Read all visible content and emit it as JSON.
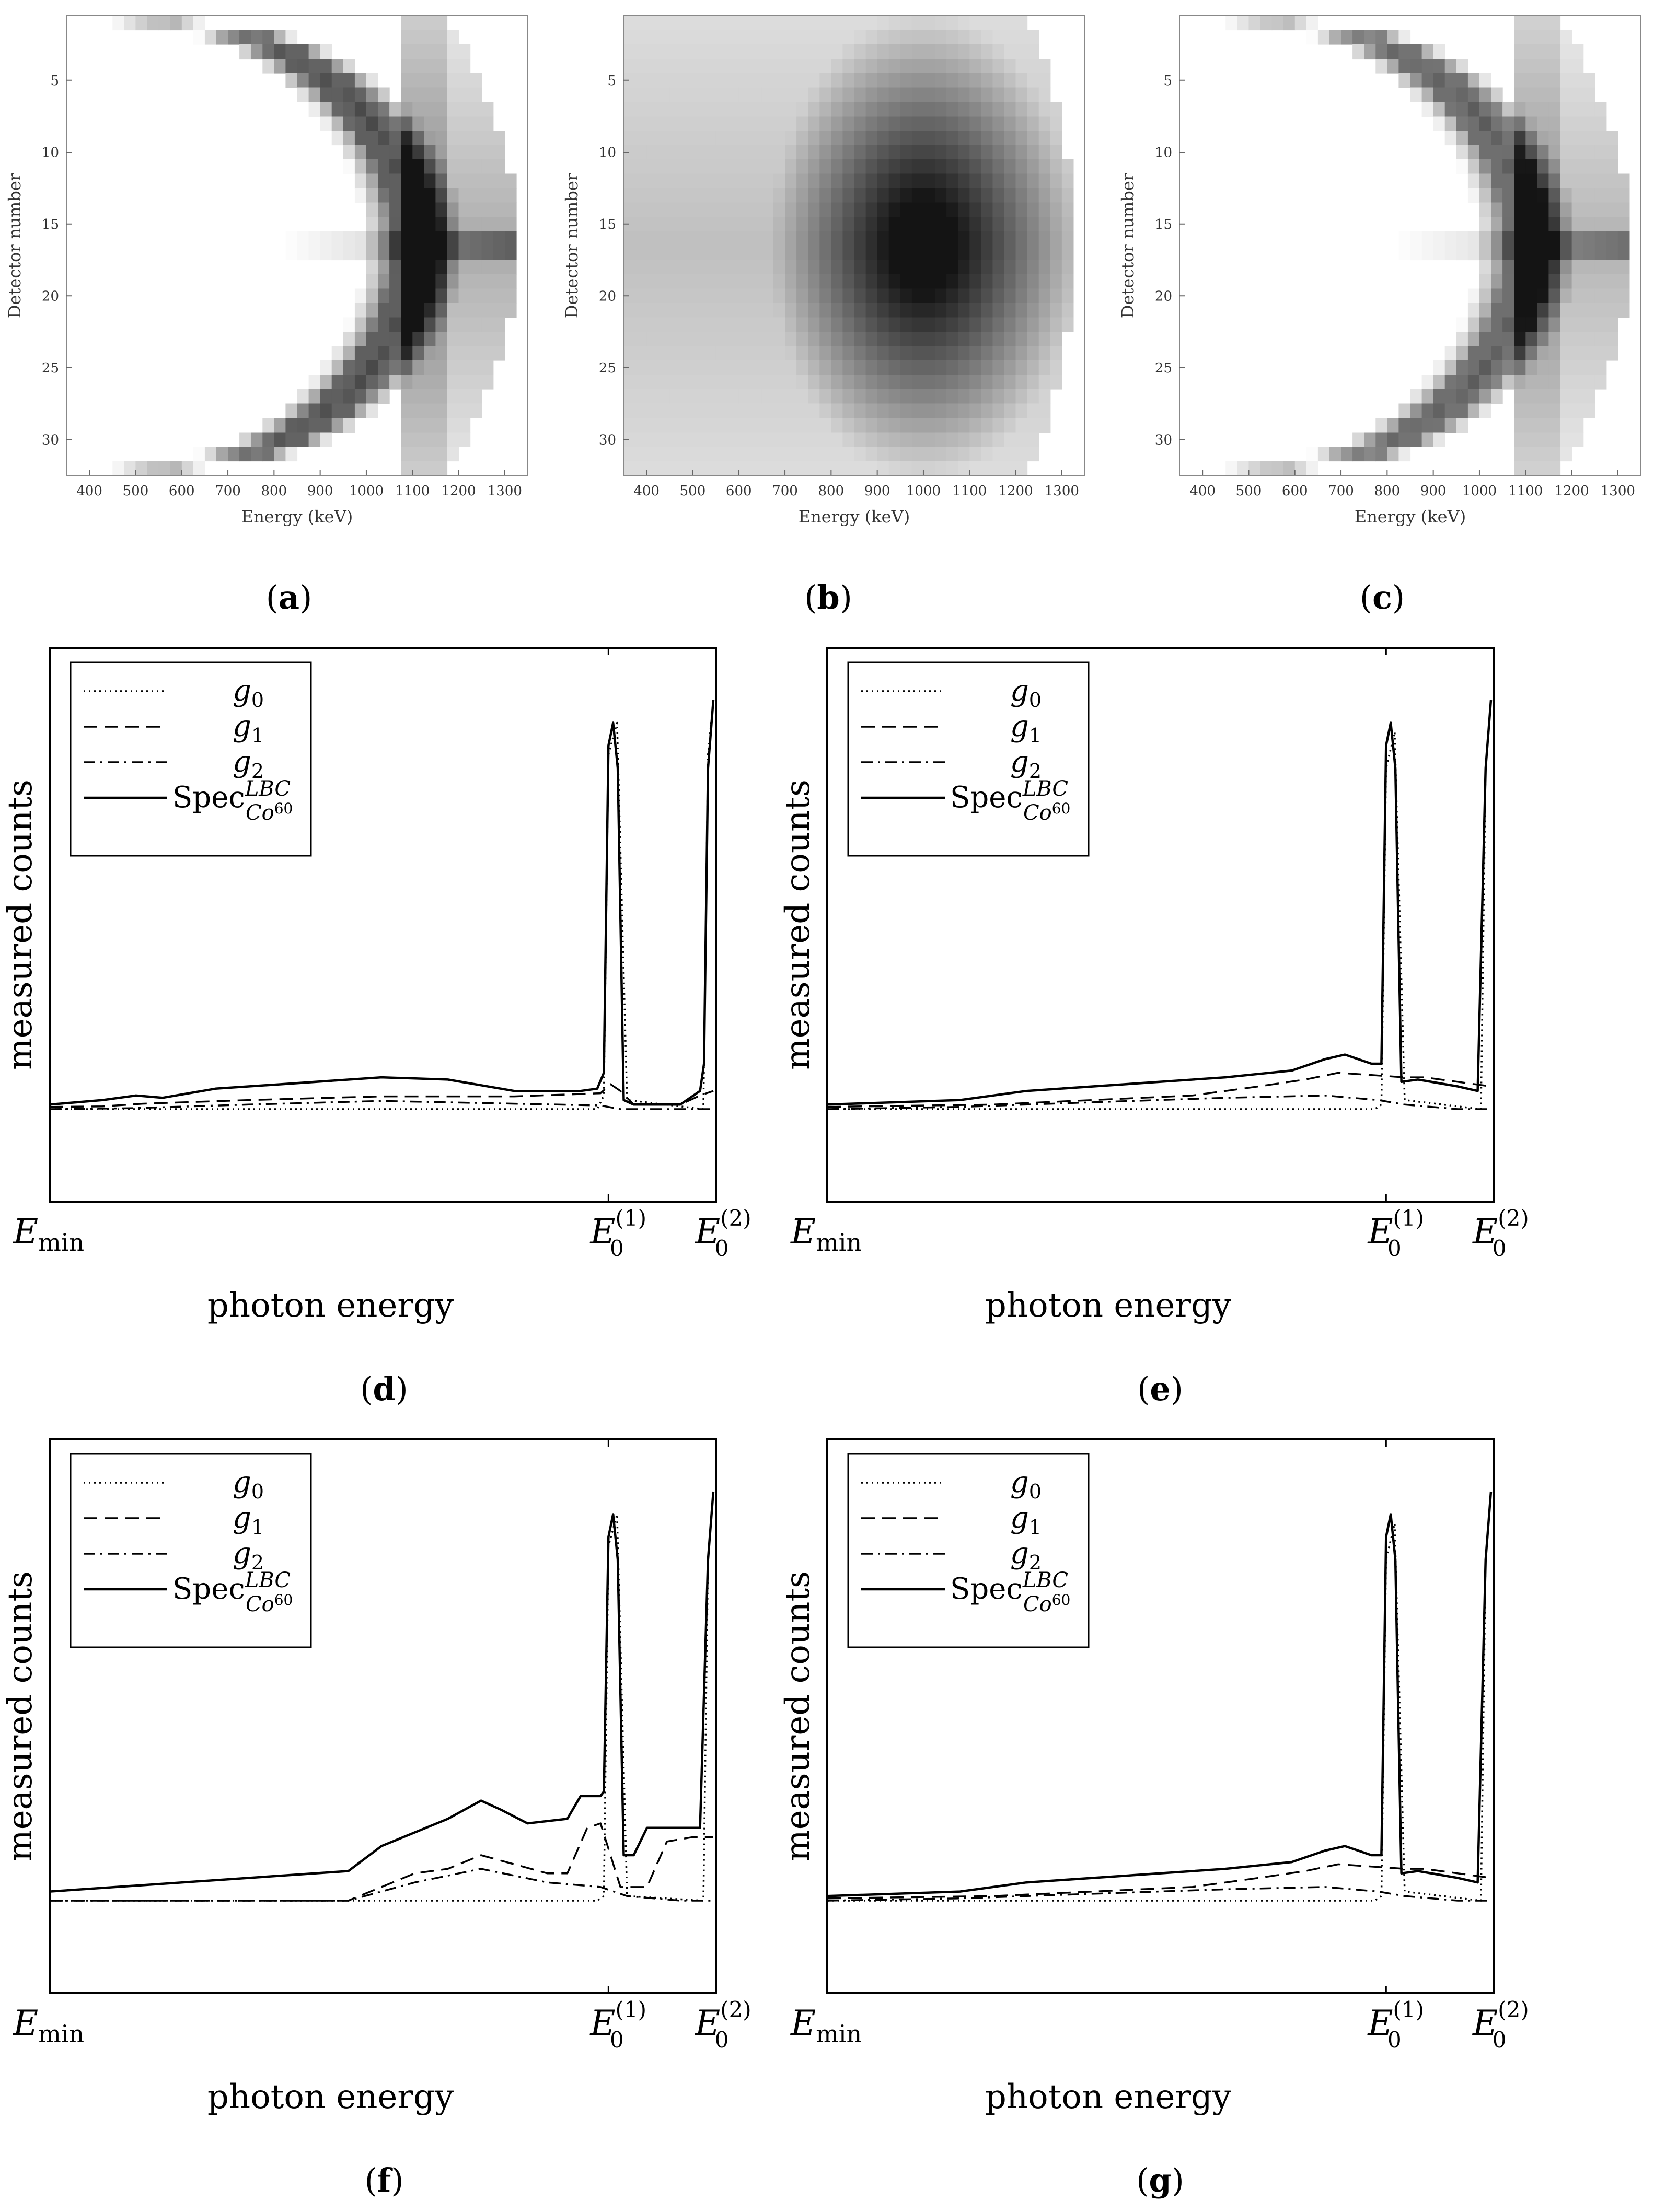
{
  "chart_data": [
    {
      "id": "a",
      "caption": "a",
      "type": "heatmap",
      "xlabel": "Energy (keV)",
      "ylabel": "Detector number",
      "xlim": [
        350,
        1350
      ],
      "ylim": [
        32,
        1
      ],
      "xticks": [
        400,
        500,
        600,
        700,
        800,
        900,
        1000,
        1100,
        1200,
        1300
      ],
      "yticks": [
        5,
        10,
        15,
        20,
        25,
        30
      ],
      "colormap": "gray (dark = high counts)",
      "variant": "sharp"
    },
    {
      "id": "b",
      "caption": "b",
      "type": "heatmap",
      "xlabel": "Energy (keV)",
      "ylabel": "Detector number",
      "xlim": [
        350,
        1350
      ],
      "ylim": [
        32,
        1
      ],
      "xticks": [
        400,
        500,
        600,
        700,
        800,
        900,
        1000,
        1100,
        1200,
        1300
      ],
      "yticks": [
        5,
        10,
        15,
        20,
        25,
        30
      ],
      "colormap": "gray (dark = high counts)",
      "variant": "smooth"
    },
    {
      "id": "c",
      "caption": "c",
      "type": "heatmap",
      "xlabel": "Energy (keV)",
      "ylabel": "Detector number",
      "xlim": [
        350,
        1350
      ],
      "ylim": [
        32,
        1
      ],
      "xticks": [
        400,
        500,
        600,
        700,
        800,
        900,
        1000,
        1100,
        1200,
        1300
      ],
      "yticks": [
        5,
        10,
        15,
        20,
        25,
        30
      ],
      "colormap": "gray (dark = high counts)",
      "variant": "sharp-light"
    },
    {
      "id": "d",
      "caption": "d",
      "type": "line",
      "xlabel": "photon energy",
      "ylabel": "measured counts",
      "xticks": [
        "Emin",
        "E0(1)",
        "E0(2)"
      ],
      "ylim": [
        0,
        1
      ],
      "legend_position": "top-left",
      "series": [
        {
          "name": "g0",
          "style": "dotted",
          "x": [
            0,
            0.825,
            0.835,
            0.842,
            0.855,
            0.87,
            0.985,
            0.992,
            1.0
          ],
          "y": [
            0.1,
            0.1,
            0.13,
            0.88,
            0.95,
            0.12,
            0.1,
            0.88,
            1.0
          ]
        },
        {
          "name": "g1",
          "style": "dashed",
          "x": [
            0,
            0.08,
            0.14,
            0.3,
            0.5,
            0.7,
            0.83,
            0.845,
            0.86,
            0.88,
            0.95,
            0.98,
            1.0
          ],
          "y": [
            0.105,
            0.106,
            0.112,
            0.12,
            0.128,
            0.128,
            0.135,
            0.155,
            0.14,
            0.11,
            0.11,
            0.13,
            0.14
          ]
        },
        {
          "name": "g2",
          "style": "dashdot",
          "x": [
            0,
            0.12,
            0.3,
            0.5,
            0.7,
            0.83,
            0.86,
            0.9,
            0.98,
            1.0
          ],
          "y": [
            0.1,
            0.102,
            0.11,
            0.118,
            0.112,
            0.108,
            0.1,
            0.1,
            0.1,
            0.1
          ]
        },
        {
          "name": "Spec",
          "style": "solid",
          "x": [
            0,
            0.08,
            0.13,
            0.17,
            0.25,
            0.35,
            0.5,
            0.6,
            0.7,
            0.8,
            0.825,
            0.835,
            0.842,
            0.849,
            0.856,
            0.865,
            0.88,
            0.95,
            0.98,
            0.986,
            0.992,
            1.0
          ],
          "y": [
            0.11,
            0.12,
            0.13,
            0.125,
            0.145,
            0.155,
            0.17,
            0.165,
            0.14,
            0.14,
            0.145,
            0.18,
            0.9,
            0.95,
            0.85,
            0.12,
            0.11,
            0.11,
            0.14,
            0.2,
            0.85,
            1.0
          ]
        }
      ]
    },
    {
      "id": "e",
      "caption": "e",
      "type": "line",
      "xlabel": "photon energy",
      "ylabel": "measured counts",
      "xticks": [
        "Emin",
        "E0(1)",
        "E0(2)"
      ],
      "ylim": [
        0,
        1
      ],
      "legend_position": "top-left",
      "series": [
        {
          "name": "g0",
          "style": "dotted",
          "x": [
            0,
            0.825,
            0.835,
            0.842,
            0.855,
            0.87,
            0.985,
            0.992,
            1.0
          ],
          "y": [
            0.1,
            0.1,
            0.11,
            0.85,
            0.93,
            0.12,
            0.1,
            0.85,
            1.0
          ]
        },
        {
          "name": "g1",
          "style": "dashed",
          "x": [
            0,
            0.25,
            0.4,
            0.55,
            0.65,
            0.72,
            0.77,
            0.82,
            0.87,
            0.9,
            0.95,
            1.0
          ],
          "y": [
            0.105,
            0.11,
            0.12,
            0.13,
            0.15,
            0.165,
            0.18,
            0.175,
            0.17,
            0.17,
            0.16,
            0.15
          ]
        },
        {
          "name": "g2",
          "style": "dashdot",
          "x": [
            0,
            0.2,
            0.4,
            0.6,
            0.75,
            0.83,
            0.87,
            0.95,
            1.0
          ],
          "y": [
            0.1,
            0.105,
            0.115,
            0.125,
            0.13,
            0.12,
            0.11,
            0.1,
            0.1
          ]
        },
        {
          "name": "Spec",
          "style": "solid",
          "x": [
            0,
            0.2,
            0.3,
            0.45,
            0.6,
            0.7,
            0.75,
            0.78,
            0.82,
            0.835,
            0.842,
            0.849,
            0.856,
            0.865,
            0.89,
            0.95,
            0.98,
            0.992,
            1.0
          ],
          "y": [
            0.11,
            0.12,
            0.14,
            0.155,
            0.17,
            0.185,
            0.21,
            0.22,
            0.2,
            0.2,
            0.9,
            0.95,
            0.85,
            0.16,
            0.165,
            0.15,
            0.14,
            0.85,
            1.0
          ]
        }
      ]
    },
    {
      "id": "f",
      "caption": "f",
      "type": "line",
      "xlabel": "photon energy",
      "ylabel": "measured counts",
      "xticks": [
        "Emin",
        "E0(1)",
        "E0(2)"
      ],
      "ylim": [
        0,
        1
      ],
      "legend_position": "top-left",
      "series": [
        {
          "name": "g0",
          "style": "dotted",
          "x": [
            0,
            0.825,
            0.835,
            0.842,
            0.855,
            0.87,
            0.985,
            0.992,
            1.0
          ],
          "y": [
            0.1,
            0.1,
            0.11,
            0.88,
            0.95,
            0.11,
            0.1,
            0.85,
            1.0
          ]
        },
        {
          "name": "g1",
          "style": "dashed",
          "x": [
            0,
            0.45,
            0.55,
            0.6,
            0.65,
            0.7,
            0.75,
            0.78,
            0.81,
            0.83,
            0.86,
            0.9,
            0.93,
            0.97,
            1.0
          ],
          "y": [
            0.1,
            0.1,
            0.16,
            0.17,
            0.2,
            0.18,
            0.16,
            0.16,
            0.26,
            0.27,
            0.13,
            0.13,
            0.23,
            0.24,
            0.24
          ]
        },
        {
          "name": "g2",
          "style": "dashdot",
          "x": [
            0,
            0.45,
            0.55,
            0.65,
            0.75,
            0.83,
            0.87,
            0.95,
            1.0
          ],
          "y": [
            0.1,
            0.1,
            0.14,
            0.17,
            0.14,
            0.13,
            0.11,
            0.1,
            0.1
          ]
        },
        {
          "name": "Spec",
          "style": "solid",
          "x": [
            0,
            0.45,
            0.5,
            0.6,
            0.65,
            0.68,
            0.72,
            0.78,
            0.8,
            0.83,
            0.835,
            0.842,
            0.849,
            0.856,
            0.865,
            0.88,
            0.9,
            0.95,
            0.98,
            0.992,
            1.0
          ],
          "y": [
            0.12,
            0.165,
            0.22,
            0.28,
            0.32,
            0.3,
            0.27,
            0.28,
            0.33,
            0.33,
            0.34,
            0.9,
            0.95,
            0.85,
            0.2,
            0.2,
            0.26,
            0.26,
            0.26,
            0.85,
            1.0
          ]
        }
      ]
    },
    {
      "id": "g",
      "caption": "g",
      "type": "line",
      "xlabel": "photon energy",
      "ylabel": "measured counts",
      "xticks": [
        "Emin",
        "E0(1)",
        "E0(2)"
      ],
      "ylim": [
        0,
        1
      ],
      "legend_position": "top-left",
      "series": [
        {
          "name": "g0",
          "style": "dotted",
          "x": [
            0,
            0.825,
            0.835,
            0.842,
            0.855,
            0.87,
            0.985,
            0.992,
            1.0
          ],
          "y": [
            0.1,
            0.1,
            0.11,
            0.85,
            0.93,
            0.12,
            0.1,
            0.85,
            1.0
          ]
        },
        {
          "name": "g1",
          "style": "dashed",
          "x": [
            0,
            0.25,
            0.4,
            0.55,
            0.65,
            0.72,
            0.77,
            0.82,
            0.87,
            0.9,
            0.95,
            1.0
          ],
          "y": [
            0.105,
            0.11,
            0.12,
            0.13,
            0.15,
            0.165,
            0.18,
            0.175,
            0.17,
            0.17,
            0.16,
            0.15
          ]
        },
        {
          "name": "g2",
          "style": "dashdot",
          "x": [
            0,
            0.2,
            0.4,
            0.6,
            0.75,
            0.83,
            0.87,
            0.95,
            1.0
          ],
          "y": [
            0.1,
            0.105,
            0.115,
            0.125,
            0.13,
            0.12,
            0.11,
            0.1,
            0.1
          ]
        },
        {
          "name": "Spec",
          "style": "solid",
          "x": [
            0,
            0.2,
            0.3,
            0.45,
            0.6,
            0.7,
            0.75,
            0.78,
            0.82,
            0.835,
            0.842,
            0.849,
            0.856,
            0.865,
            0.89,
            0.95,
            0.98,
            0.992,
            1.0
          ],
          "y": [
            0.11,
            0.12,
            0.14,
            0.155,
            0.17,
            0.185,
            0.21,
            0.22,
            0.2,
            0.2,
            0.9,
            0.95,
            0.85,
            0.16,
            0.165,
            0.15,
            0.14,
            0.85,
            1.0
          ]
        }
      ]
    }
  ]
}
